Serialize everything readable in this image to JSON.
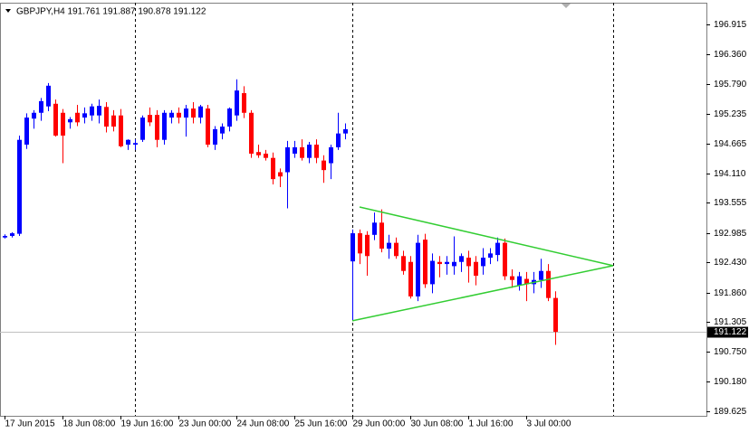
{
  "chart_data": {
    "type": "candlestick",
    "title": "GBPJPY,H4  191.761 191.887 190.878 191.122",
    "x": [
      0,
      1,
      2,
      3,
      4,
      5,
      6,
      7,
      8,
      9,
      10,
      11,
      12,
      13,
      14,
      15,
      16,
      17,
      18,
      19,
      20,
      21,
      22,
      23,
      24,
      25,
      26,
      27,
      28,
      29,
      30,
      31,
      32,
      33,
      34,
      35,
      36,
      37,
      38,
      39,
      40,
      41,
      42,
      43,
      44,
      45,
      46,
      47,
      48,
      49,
      50,
      51,
      52,
      53,
      54,
      55,
      56,
      57,
      58,
      59,
      60,
      61,
      62,
      63,
      64,
      65,
      66,
      67,
      68,
      69,
      70,
      71,
      72,
      73,
      74,
      75,
      76
    ],
    "open": [
      192.9,
      192.93,
      192.97,
      194.65,
      195.14,
      195.25,
      195.37,
      195.42,
      195.25,
      195.07,
      195.25,
      195.16,
      195.2,
      195.2,
      195.36,
      195.2,
      195.2,
      194.65,
      194.65,
      194.74,
      195.21,
      195.21,
      194.74,
      195.16,
      195.25,
      195.16,
      195.33,
      195.16,
      195.33,
      194.65,
      194.86,
      194.99,
      195.2,
      195.62,
      195.25,
      194.51,
      194.48,
      194.4,
      194.13,
      194.13,
      194.48,
      194.6,
      194.4,
      194.65,
      194.35,
      194.3,
      194.6,
      194.86,
      192.45,
      192.98,
      192.95,
      192.95,
      193.18,
      192.69,
      192.8,
      192.55,
      192.44,
      191.79,
      192.86,
      192.02,
      192.44,
      192.4,
      192.36,
      192.44,
      192.52,
      192.44,
      192.36,
      192.52,
      192.57,
      192.8,
      192.17,
      192.0,
      192.12,
      192.02,
      192.1,
      192.27,
      191.761
    ],
    "high": [
      192.96,
      193.0,
      194.82,
      195.24,
      195.3,
      195.53,
      195.81,
      195.5,
      195.32,
      195.17,
      195.4,
      195.35,
      195.42,
      195.5,
      195.45,
      195.3,
      195.32,
      194.75,
      194.75,
      195.2,
      195.35,
      195.3,
      195.3,
      195.3,
      195.35,
      195.4,
      195.45,
      195.4,
      195.4,
      195.0,
      195.05,
      195.35,
      195.88,
      195.75,
      195.3,
      194.65,
      194.55,
      194.5,
      194.2,
      194.72,
      194.72,
      194.75,
      194.7,
      194.75,
      194.45,
      194.65,
      195.25,
      195.05,
      193.05,
      193.05,
      193.02,
      193.37,
      193.43,
      192.95,
      192.9,
      192.65,
      192.55,
      192.95,
      192.97,
      192.6,
      192.55,
      192.55,
      192.92,
      192.6,
      192.65,
      192.55,
      192.7,
      192.7,
      192.9,
      192.88,
      192.3,
      192.25,
      192.25,
      192.25,
      192.5,
      192.4,
      191.887
    ],
    "low": [
      192.88,
      192.9,
      192.93,
      194.57,
      194.95,
      195.1,
      195.28,
      194.8,
      194.3,
      194.95,
      195.0,
      195.05,
      195.1,
      195.05,
      194.88,
      194.9,
      194.6,
      194.55,
      194.55,
      194.7,
      195.0,
      194.6,
      194.65,
      195.05,
      195.05,
      194.8,
      195.05,
      195.05,
      194.6,
      194.55,
      194.75,
      194.9,
      195.1,
      195.15,
      194.4,
      194.4,
      194.35,
      193.9,
      193.85,
      193.45,
      194.4,
      194.35,
      194.3,
      194.3,
      193.93,
      194.0,
      194.55,
      194.75,
      191.33,
      192.4,
      192.18,
      192.85,
      192.62,
      192.5,
      192.5,
      192.2,
      191.75,
      191.7,
      191.95,
      191.85,
      192.15,
      192.2,
      192.2,
      192.25,
      192.05,
      192.0,
      192.2,
      192.4,
      192.45,
      192.1,
      191.95,
      191.9,
      191.7,
      191.85,
      191.95,
      191.7,
      190.878
    ],
    "close": [
      192.93,
      192.98,
      194.74,
      195.16,
      195.25,
      195.47,
      195.76,
      194.82,
      194.82,
      195.13,
      195.07,
      195.24,
      195.37,
      195.38,
      194.99,
      194.99,
      194.62,
      194.74,
      194.68,
      195.16,
      195.07,
      194.74,
      195.25,
      195.25,
      195.16,
      195.33,
      195.16,
      195.37,
      194.65,
      194.94,
      194.99,
      195.33,
      195.67,
      195.25,
      194.48,
      194.45,
      194.4,
      194.0,
      194.05,
      194.6,
      194.6,
      194.4,
      194.65,
      194.4,
      194.17,
      194.6,
      194.86,
      194.94,
      192.98,
      192.6,
      192.55,
      193.18,
      192.69,
      192.8,
      192.55,
      192.27,
      191.79,
      192.8,
      192.02,
      192.46,
      192.4,
      192.44,
      192.44,
      192.55,
      192.36,
      192.18,
      192.52,
      192.6,
      192.8,
      192.17,
      192.1,
      192.17,
      192.02,
      192.1,
      192.27,
      191.76,
      191.122
    ],
    "up_color": "#0000ff",
    "down_color": "#ff0000",
    "last_price": 191.122,
    "xlim": [
      -0.625,
      96.875
    ],
    "ylim": [
      189.54,
      197.324
    ],
    "xticks": [
      {
        "value": 0,
        "label": "17 Jun 2015"
      },
      {
        "value": 8,
        "label": "18 Jun 08:00"
      },
      {
        "value": 16,
        "label": "19 Jun 16:00"
      },
      {
        "value": 24,
        "label": "23 Jun 00:00"
      },
      {
        "value": 32,
        "label": "24 Jun 08:00"
      },
      {
        "value": 40,
        "label": "25 Jun 16:00"
      },
      {
        "value": 48,
        "label": "29 Jun 00:00"
      },
      {
        "value": 56,
        "label": "30 Jun 08:00"
      },
      {
        "value": 64,
        "label": "1 Jul 16:00"
      },
      {
        "value": 72,
        "label": "3 Jul 00:00"
      }
    ],
    "yticks": [
      196.915,
      {
        "value": 196.36,
        "label": "196.360"
      },
      {
        "value": 195.79,
        "label": "195.790"
      },
      195.235,
      194.665,
      {
        "value": 194.11,
        "label": "194.110"
      },
      193.555,
      192.985,
      {
        "value": 192.43,
        "label": "192.430"
      },
      {
        "value": 191.86,
        "label": "191.860"
      },
      191.305,
      {
        "value": 190.75,
        "label": "190.750"
      },
      {
        "value": 190.18,
        "label": "190.180"
      },
      189.625
    ],
    "separators": [
      18,
      48,
      84
    ],
    "trendline_color": "#32cd32",
    "trendlines": [
      {
        "x": [
          49,
          84
        ],
        "y": [
          193.475,
          192.37
        ]
      },
      {
        "x": [
          48,
          84
        ],
        "y": [
          191.33,
          192.37
        ]
      }
    ]
  }
}
